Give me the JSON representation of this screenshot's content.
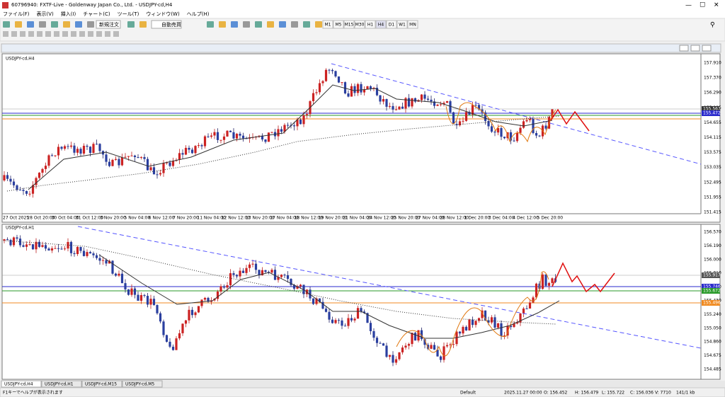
{
  "title_bar": "60796940: FXTF-Live - Goldenway Japan Co., Ltd. - USDJPY-cd,H4",
  "menu": [
    "ファイル(F)",
    "表示(V)",
    "挿入(I)",
    "チャート(C)",
    "ツール(T)",
    "ウィンドウ(W)",
    "ヘルプ(H)"
  ],
  "toolbar": {
    "new_order": "新規注文",
    "auto_trade": "自動売買",
    "timeframes": [
      "M1",
      "M5",
      "M15",
      "M30",
      "H1",
      "H4",
      "D1",
      "W1",
      "MN"
    ]
  },
  "charts": [
    {
      "label": "USDJPY-cd,H4",
      "price_ticks": [
        "157.910",
        "157.370",
        "156.290",
        "155.195",
        "154.655",
        "154.115",
        "153.575",
        "153.035",
        "152.495",
        "151.955",
        "151.415"
      ],
      "price_boxes": [
        "155.567",
        "155.472"
      ],
      "time_labels": [
        "27 Oct 2025",
        "28 Oct 20:00",
        "30 Oct 04:00",
        "31 Oct 12:00",
        "3 Nov 20:00",
        "5 Nov 04:00",
        "6 Nov 12:00",
        "7 Nov 20:00",
        "11 Nov 04:00",
        "12 Nov 12:00",
        "13 Nov 20:00",
        "17 Nov 04:00",
        "18 Nov 12:00",
        "19 Nov 20:00",
        "21 Nov 04:00",
        "24 Nov 12:00",
        "25 Nov 20:00",
        "27 Nov 04:00",
        "28 Nov 12:00",
        "1 Dec 20:00",
        "3 Dec 04:00",
        "4 Dec 12:00",
        "5 Dec 20:00"
      ]
    },
    {
      "label": "USDJPY-cd,H1",
      "price_ticks": [
        "156.570",
        "156.190",
        "156.000",
        "155.810",
        "155.620",
        "155.430",
        "155.240",
        "155.050",
        "154.860",
        "154.675",
        "154.485"
      ],
      "price_boxes": [
        "155.917",
        "155.746",
        "155.672",
        "155.496"
      ]
    }
  ],
  "tabs": [
    "USDJPY-cd,H4",
    "USDJPY-cd,H1",
    "USDJPY-cd,M15",
    "USDJPY-cd,M5"
  ],
  "status_bar": [
    "F1キーでヘルプが表示されます",
    "Default",
    "2025.11.27 00:00",
    "O: 156.452",
    "H: 156.479",
    "L: 155.722",
    "C: 156.036",
    "V: 7710",
    "141/1 kb"
  ]
}
